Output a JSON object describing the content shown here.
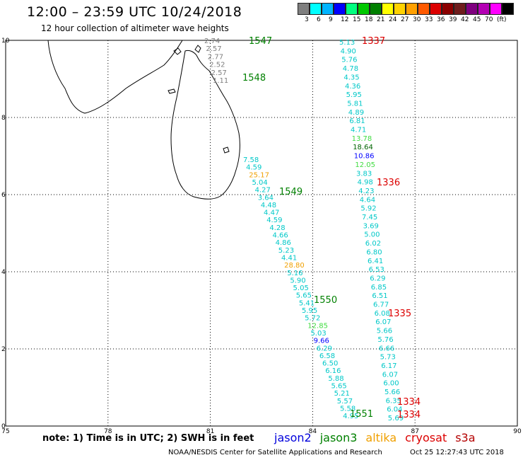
{
  "header": {
    "title": "12:00 – 23:59 UTC 10/24/2018",
    "subtitle": "12 hour collection of altimeter wave heights"
  },
  "legend": {
    "swatches": [
      "#7f7f7f",
      "#00ffff",
      "#00b4ff",
      "#0000ff",
      "#00ff7f",
      "#00c800",
      "#008000",
      "#ffff00",
      "#ffd200",
      "#ffa000",
      "#ff5a00",
      "#dc0000",
      "#8b0000",
      "#6f1d1d",
      "#7f007f",
      "#b400b4",
      "#ff00ff",
      "#000000"
    ],
    "labels": [
      "3",
      "6",
      "9",
      "12",
      "15",
      "18",
      "21",
      "24",
      "27",
      "30",
      "33",
      "36",
      "39",
      "42",
      "45",
      "70",
      "(ft)"
    ]
  },
  "axes": {
    "x_ticks": [
      "75",
      "78",
      "81",
      "84",
      "87",
      "90"
    ],
    "y_ticks": [
      "0",
      "2",
      "4",
      "6",
      "8",
      "10"
    ]
  },
  "tracks": [
    {
      "id": "1547",
      "color": "#008000"
    },
    {
      "id": "1548",
      "color": "#008000"
    },
    {
      "id": "1549",
      "color": "#008000"
    },
    {
      "id": "1550",
      "color": "#008000"
    },
    {
      "id": "1551",
      "color": "#008000"
    },
    {
      "id": "1337",
      "color": "#dc0000"
    },
    {
      "id": "1336",
      "color": "#dc0000"
    },
    {
      "id": "1335",
      "color": "#dc0000"
    },
    {
      "id": "1334",
      "color": "#dc0000"
    },
    {
      "id": "1334",
      "color": "#dc0000"
    }
  ],
  "obs_colors": {
    "grey": "#7f7f7f",
    "cyan": "#00c8c8",
    "blue": "#0000ff",
    "lgreen": "#40dc40",
    "dgreen": "#006400",
    "orange": "#f0a000"
  },
  "obs_track_a": [
    {
      "v": "2.74",
      "c": "grey"
    },
    {
      "v": "2.57",
      "c": "grey"
    },
    {
      "v": "2.77",
      "c": "grey"
    },
    {
      "v": "2.52",
      "c": "grey"
    },
    {
      "v": "2.57",
      "c": "grey"
    },
    {
      "v": "1.11",
      "c": "grey"
    }
  ],
  "obs_track_b": [
    {
      "v": "7.58",
      "c": "cyan"
    },
    {
      "v": "4.59",
      "c": "cyan"
    },
    {
      "v": "25.17",
      "c": "orange"
    },
    {
      "v": "5.04",
      "c": "cyan"
    },
    {
      "v": "4.27",
      "c": "cyan"
    },
    {
      "v": "3.64",
      "c": "cyan"
    },
    {
      "v": "4.48",
      "c": "cyan"
    },
    {
      "v": "4.47",
      "c": "cyan"
    },
    {
      "v": "4.59",
      "c": "cyan"
    },
    {
      "v": "4.28",
      "c": "cyan"
    },
    {
      "v": "4.66",
      "c": "cyan"
    },
    {
      "v": "4.86",
      "c": "cyan"
    },
    {
      "v": "5.23",
      "c": "cyan"
    },
    {
      "v": "4.41",
      "c": "cyan"
    },
    {
      "v": "28.80",
      "c": "orange"
    },
    {
      "v": "5.16",
      "c": "cyan"
    },
    {
      "v": "5.90",
      "c": "cyan"
    },
    {
      "v": "5.05",
      "c": "cyan"
    },
    {
      "v": "5.65",
      "c": "cyan"
    },
    {
      "v": "5.41",
      "c": "cyan"
    },
    {
      "v": "5.95",
      "c": "cyan"
    },
    {
      "v": "5.72",
      "c": "cyan"
    },
    {
      "v": "12.85",
      "c": "lgreen"
    },
    {
      "v": "5.03",
      "c": "cyan"
    },
    {
      "v": "9.66",
      "c": "blue"
    },
    {
      "v": "6.29",
      "c": "cyan"
    },
    {
      "v": "6.58",
      "c": "cyan"
    },
    {
      "v": "6.50",
      "c": "cyan"
    },
    {
      "v": "6.16",
      "c": "cyan"
    },
    {
      "v": "5.88",
      "c": "cyan"
    },
    {
      "v": "5.65",
      "c": "cyan"
    },
    {
      "v": "5.21",
      "c": "cyan"
    },
    {
      "v": "5.57",
      "c": "cyan"
    },
    {
      "v": "5.58",
      "c": "cyan"
    },
    {
      "v": "4.95",
      "c": "cyan"
    }
  ],
  "obs_track_c": [
    {
      "v": "5.13",
      "c": "cyan"
    },
    {
      "v": "4.90",
      "c": "cyan"
    },
    {
      "v": "5.76",
      "c": "cyan"
    },
    {
      "v": "4.78",
      "c": "cyan"
    },
    {
      "v": "4.35",
      "c": "cyan"
    },
    {
      "v": "4.36",
      "c": "cyan"
    },
    {
      "v": "5.95",
      "c": "cyan"
    },
    {
      "v": "5.81",
      "c": "cyan"
    },
    {
      "v": "4.89",
      "c": "cyan"
    },
    {
      "v": "6.81",
      "c": "cyan"
    },
    {
      "v": "4.71",
      "c": "cyan"
    },
    {
      "v": "13.78",
      "c": "lgreen"
    },
    {
      "v": "18.64",
      "c": "dgreen"
    },
    {
      "v": "10.86",
      "c": "blue"
    },
    {
      "v": "12.05",
      "c": "lgreen"
    },
    {
      "v": "3.83",
      "c": "cyan"
    },
    {
      "v": "4.98",
      "c": "cyan"
    },
    {
      "v": "4.23",
      "c": "cyan"
    },
    {
      "v": "4.64",
      "c": "cyan"
    },
    {
      "v": "5.92",
      "c": "cyan"
    },
    {
      "v": "7.45",
      "c": "cyan"
    },
    {
      "v": "3.69",
      "c": "cyan"
    },
    {
      "v": "5.00",
      "c": "cyan"
    },
    {
      "v": "6.02",
      "c": "cyan"
    },
    {
      "v": "6.80",
      "c": "cyan"
    },
    {
      "v": "6.41",
      "c": "cyan"
    },
    {
      "v": "6.53",
      "c": "cyan"
    },
    {
      "v": "6.29",
      "c": "cyan"
    },
    {
      "v": "6.85",
      "c": "cyan"
    },
    {
      "v": "6.51",
      "c": "cyan"
    },
    {
      "v": "6.77",
      "c": "cyan"
    },
    {
      "v": "6.08",
      "c": "cyan"
    },
    {
      "v": "6.07",
      "c": "cyan"
    },
    {
      "v": "5.66",
      "c": "cyan"
    },
    {
      "v": "5.76",
      "c": "cyan"
    },
    {
      "v": "6.66",
      "c": "cyan"
    },
    {
      "v": "5.73",
      "c": "cyan"
    },
    {
      "v": "6.17",
      "c": "cyan"
    },
    {
      "v": "6.07",
      "c": "cyan"
    },
    {
      "v": "6.00",
      "c": "cyan"
    },
    {
      "v": "5.66",
      "c": "cyan"
    },
    {
      "v": "6.35",
      "c": "cyan"
    },
    {
      "v": "6.04",
      "c": "cyan"
    },
    {
      "v": "5.69",
      "c": "cyan"
    }
  ],
  "footer": {
    "note": "note: 1) Time is in UTC; 2) SWH is in feet",
    "satellites": [
      {
        "name": "jason2",
        "color": "#0000dc"
      },
      {
        "name": "jason3",
        "color": "#008000"
      },
      {
        "name": "altika",
        "color": "#f0a000"
      },
      {
        "name": "cryosat",
        "color": "#dc0000"
      },
      {
        "name": "s3a",
        "color": "#b40000"
      }
    ],
    "credit": "NOAA/NESDIS Center for Satellite Applications and Research",
    "timestamp": "Oct 25 12:27:43 UTC 2018"
  }
}
